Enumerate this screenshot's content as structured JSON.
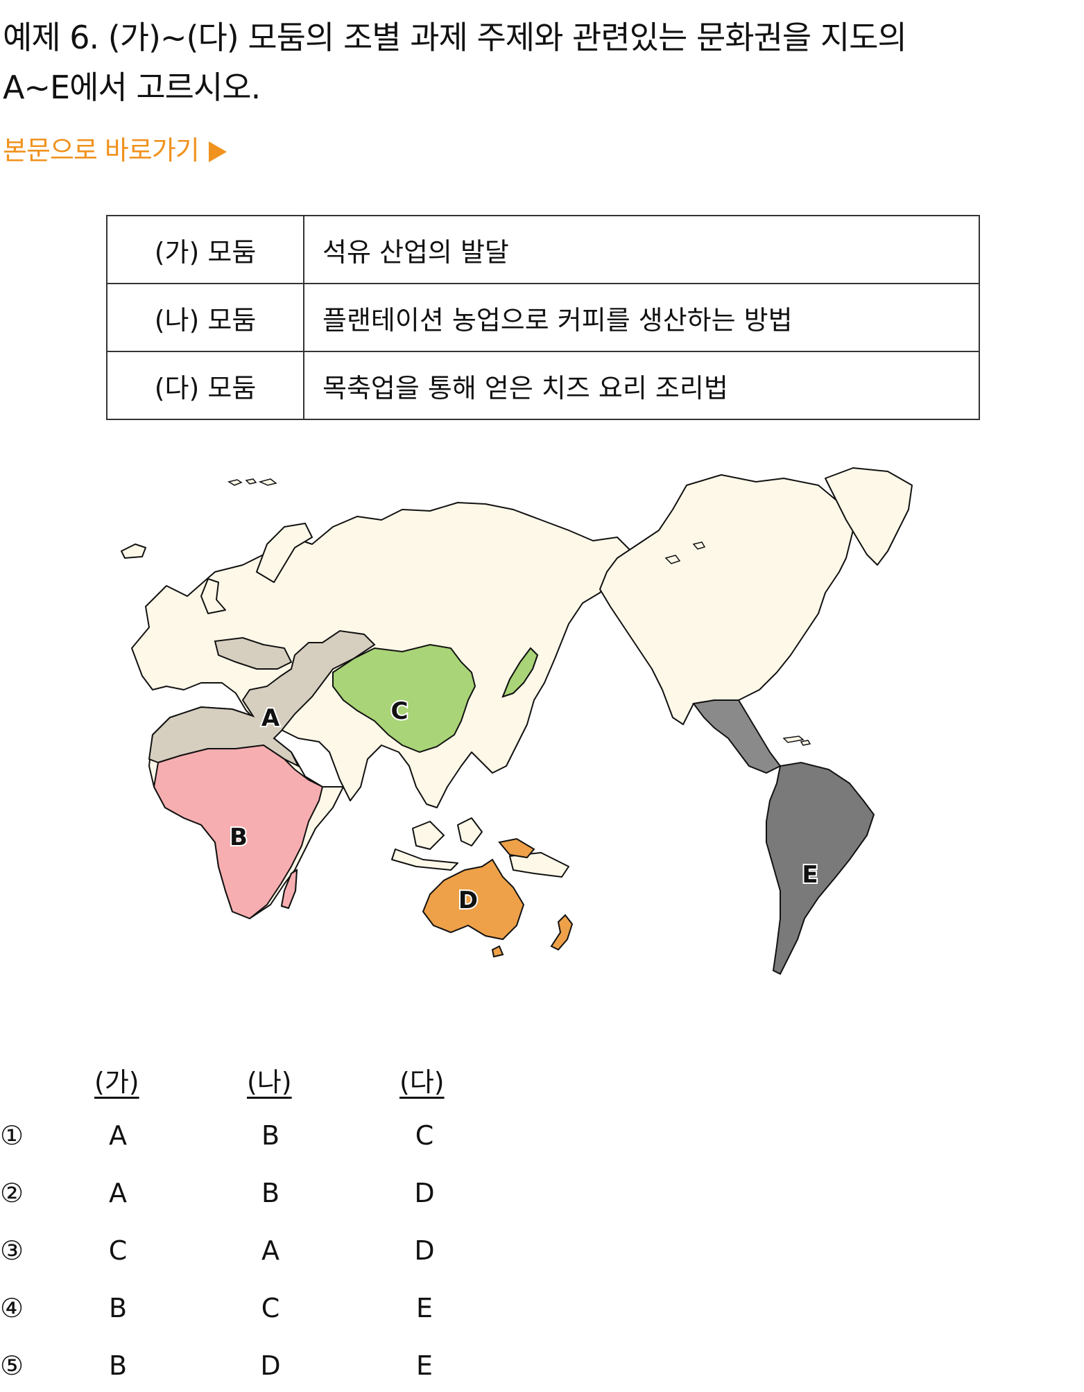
{
  "question": {
    "line1": "예제 6. (가)~(다) 모둠의 조별 과제 주제와 관련있는 문화권을 지도의",
    "line2": "A~E에서 고르시오."
  },
  "skip_link": "본문으로 바로가기",
  "topics": [
    {
      "group": "(가) 모둠",
      "theme": "석유 산업의 발달"
    },
    {
      "group": "(나) 모둠",
      "theme": "플랜테이션 농업으로 커피를 생산하는 방법"
    },
    {
      "group": "(다) 모둠",
      "theme": "목축업을 통해 얻은 치즈 요리 조리법"
    }
  ],
  "map": {
    "labels": [
      "A",
      "B",
      "C",
      "D",
      "E"
    ],
    "colors": {
      "land": "#fdf8e8",
      "A": "#d6cfbf",
      "B": "#f7aeb0",
      "C": "#a9d477",
      "D": "#eea149",
      "E": "#7a7a7a",
      "E_mexico": "#8a8a8a",
      "outline": "#111111"
    }
  },
  "choices": {
    "headers": [
      "(가)",
      "(나)",
      "(다)"
    ],
    "rows": [
      {
        "num": "①",
        "a": "A",
        "b": "B",
        "c": "C"
      },
      {
        "num": "②",
        "a": "A",
        "b": "B",
        "c": "D"
      },
      {
        "num": "③",
        "a": "C",
        "b": "A",
        "c": "D"
      },
      {
        "num": "④",
        "a": "B",
        "b": "C",
        "c": "E"
      },
      {
        "num": "⑤",
        "a": "B",
        "b": "D",
        "c": "E"
      }
    ]
  }
}
